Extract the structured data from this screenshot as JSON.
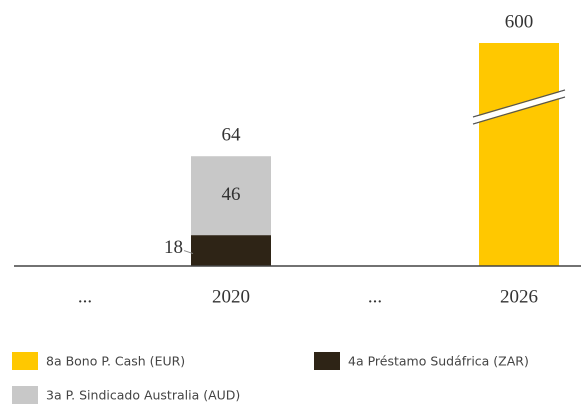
{
  "chart_data": {
    "type": "stacked_bar",
    "categories": [
      "...",
      "2020",
      "...",
      "2026"
    ],
    "series": [
      {
        "name": "8a Bono P. Cash (EUR)",
        "color": "#ffc800",
        "values": [
          null,
          null,
          null,
          600
        ]
      },
      {
        "name": "4a Préstamo Sudáfrica (ZAR)",
        "color": "#2e2416",
        "values": [
          null,
          18,
          null,
          null
        ],
        "label": "left"
      },
      {
        "name": "3a P. Sindicado Australia (AUD)",
        "color": "#c8c8c8",
        "values": [
          null,
          46,
          null,
          null
        ],
        "label": "inside"
      }
    ],
    "totals": [
      null,
      64,
      null,
      600
    ],
    "ylim": [
      0,
      130
    ],
    "axis_break": true
  }
}
